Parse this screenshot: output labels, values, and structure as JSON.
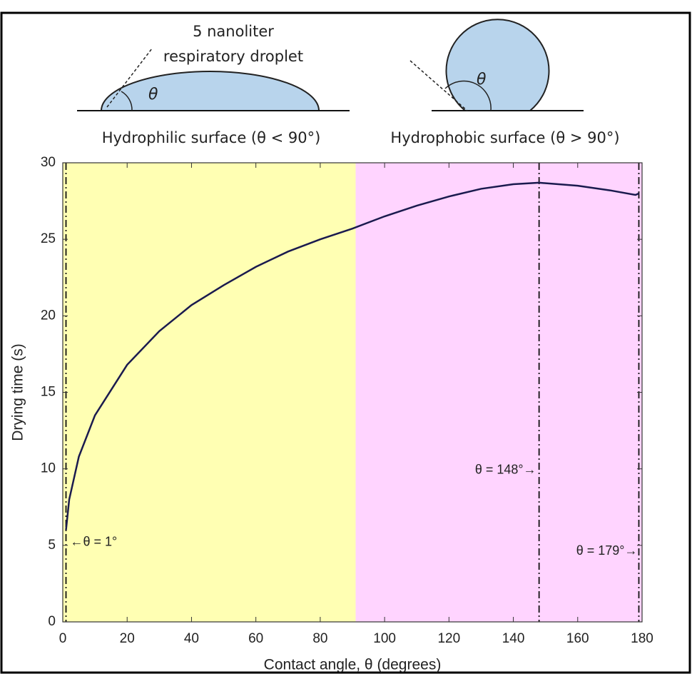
{
  "header": {
    "droplet_label": [
      "5 nanoliter",
      "respiratory droplet"
    ],
    "angle_symbol": "θ",
    "captions": [
      "Hydrophilic surface (θ < 90°)",
      "Hydrophobic surface (θ > 90°)"
    ]
  },
  "chart_data": {
    "type": "line",
    "x_label": "Contact angle, θ (degrees)",
    "y_label": "Drying time (s)",
    "x": [
      1,
      2,
      5,
      10,
      20,
      30,
      40,
      50,
      60,
      70,
      80,
      90,
      100,
      110,
      120,
      130,
      140,
      148,
      160,
      170,
      178,
      179
    ],
    "series": [
      {
        "color": "#1a1a4e",
        "values": [
          6,
          8,
          10.8,
          13.5,
          16.8,
          19,
          20.7,
          22,
          23.2,
          24.2,
          25,
          25.7,
          26.5,
          27.2,
          27.8,
          28.3,
          28.6,
          28.7,
          28.5,
          28.2,
          27.9,
          28
        ]
      }
    ],
    "xlim": [
      0,
      180
    ],
    "ylim": [
      0,
      30
    ],
    "xticks": [
      0,
      20,
      40,
      60,
      80,
      100,
      120,
      140,
      160,
      180
    ],
    "yticks": [
      0,
      5,
      10,
      15,
      20,
      25,
      30
    ],
    "shaded_regions": [
      {
        "xlim": [
          0,
          91
        ],
        "color": "#ffffb3"
      },
      {
        "xlim": [
          91,
          180
        ],
        "color": "#ffd4ff"
      }
    ],
    "vlines": [
      1,
      148,
      179
    ],
    "annotations": [
      "←θ = 1°",
      "θ = 148°→",
      "θ = 179°→"
    ]
  }
}
